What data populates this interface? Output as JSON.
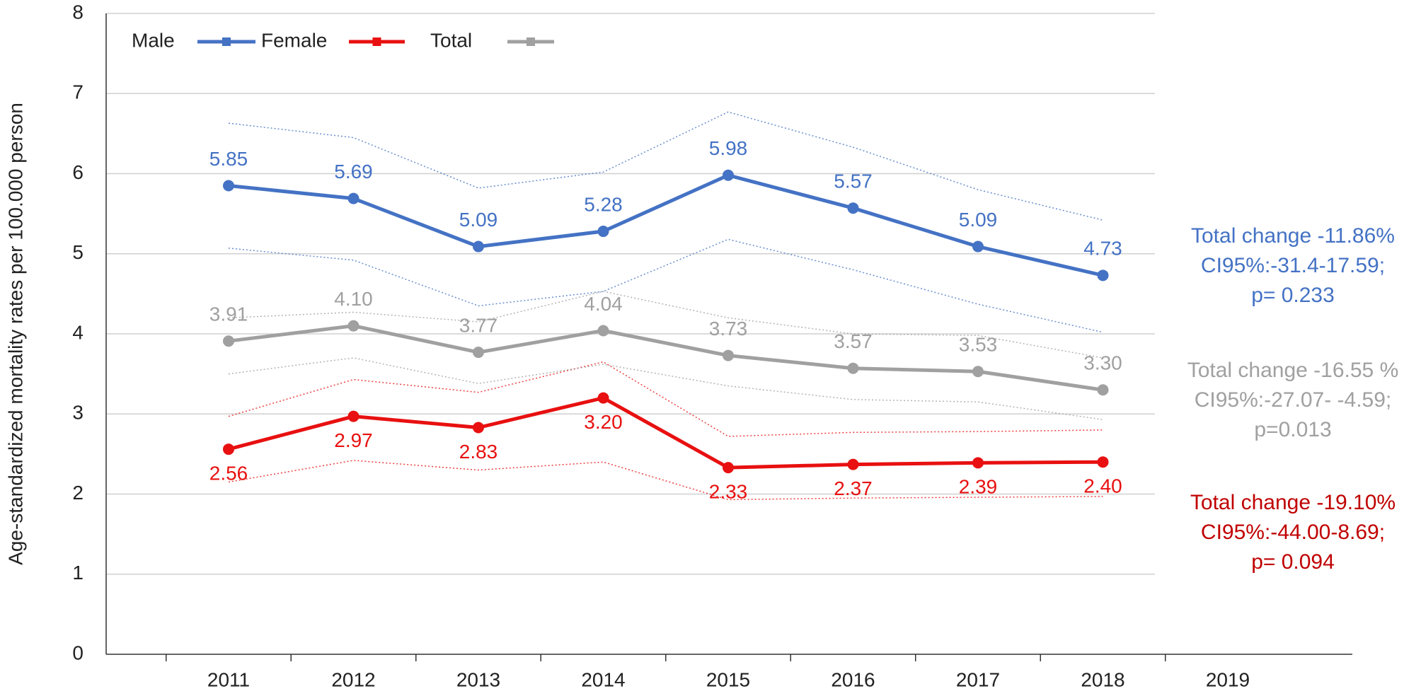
{
  "chart_data": {
    "type": "line",
    "y_label": "Age-standardized mortality rates per 100.000 person",
    "categories": [
      "2011",
      "2012",
      "2013",
      "2014",
      "2015",
      "2016",
      "2017",
      "2018",
      "2019"
    ],
    "ylim": [
      0,
      8
    ],
    "yticks": [
      0,
      1,
      2,
      3,
      4,
      5,
      6,
      7,
      8
    ],
    "grid": true,
    "legend": "top-left",
    "series": [
      {
        "name": "Male",
        "color": "#4472c4",
        "values": [
          5.85,
          5.69,
          5.09,
          5.28,
          5.98,
          5.57,
          5.09,
          4.73,
          null
        ],
        "value_labels": [
          "5.85",
          "5.69",
          "5.09",
          "5.28",
          "5.98",
          "5.57",
          "5.09",
          "4.73",
          null
        ],
        "label_position": "above",
        "ci_upper": [
          6.63,
          6.45,
          5.82,
          6.02,
          6.77,
          6.33,
          5.8,
          5.42,
          null
        ],
        "ci_lower": [
          5.07,
          4.92,
          4.35,
          4.53,
          5.18,
          4.8,
          4.37,
          4.02,
          null
        ]
      },
      {
        "name": "Female",
        "color": "#e81010",
        "values": [
          2.56,
          2.97,
          2.83,
          3.2,
          2.33,
          2.37,
          2.39,
          2.4,
          null
        ],
        "value_labels": [
          "2.56",
          "2.97",
          "2.83",
          "3.20",
          "2.33",
          "2.37",
          "2.39",
          "2.40",
          null
        ],
        "label_position": "below",
        "ci_upper": [
          2.97,
          3.43,
          3.27,
          3.65,
          2.72,
          2.77,
          2.78,
          2.8,
          null
        ],
        "ci_lower": [
          2.15,
          2.42,
          2.3,
          2.4,
          1.93,
          1.95,
          1.96,
          1.97,
          null
        ]
      },
      {
        "name": "Total",
        "color": "#a0a0a0",
        "values": [
          3.91,
          4.1,
          3.77,
          4.04,
          3.73,
          3.57,
          3.53,
          3.3,
          null
        ],
        "value_labels": [
          "3.91",
          "4.10",
          "3.77",
          "4.04",
          "3.73",
          "3.57",
          "3.53",
          "3.30",
          null
        ],
        "label_position": "above",
        "ci_upper": [
          4.2,
          4.27,
          4.15,
          4.53,
          4.2,
          4.0,
          3.98,
          3.7,
          null
        ],
        "ci_lower": [
          3.5,
          3.7,
          3.38,
          3.62,
          3.35,
          3.18,
          3.15,
          2.93,
          null
        ]
      }
    ],
    "annotations": [
      {
        "color": "#4472c4",
        "lines": [
          "Total change -11.86%",
          "CI95%:-31.4-17.59;",
          "p= 0.233"
        ]
      },
      {
        "color": "#a0a0a0",
        "lines": [
          "Total change -16.55 %",
          "CI95%:-27.07- -4.59;",
          "p=0.013"
        ]
      },
      {
        "color": "#c00000",
        "lines": [
          "Total change -19.10%",
          "CI95%:-44.00-8.69;",
          "p= 0.094"
        ]
      }
    ]
  }
}
